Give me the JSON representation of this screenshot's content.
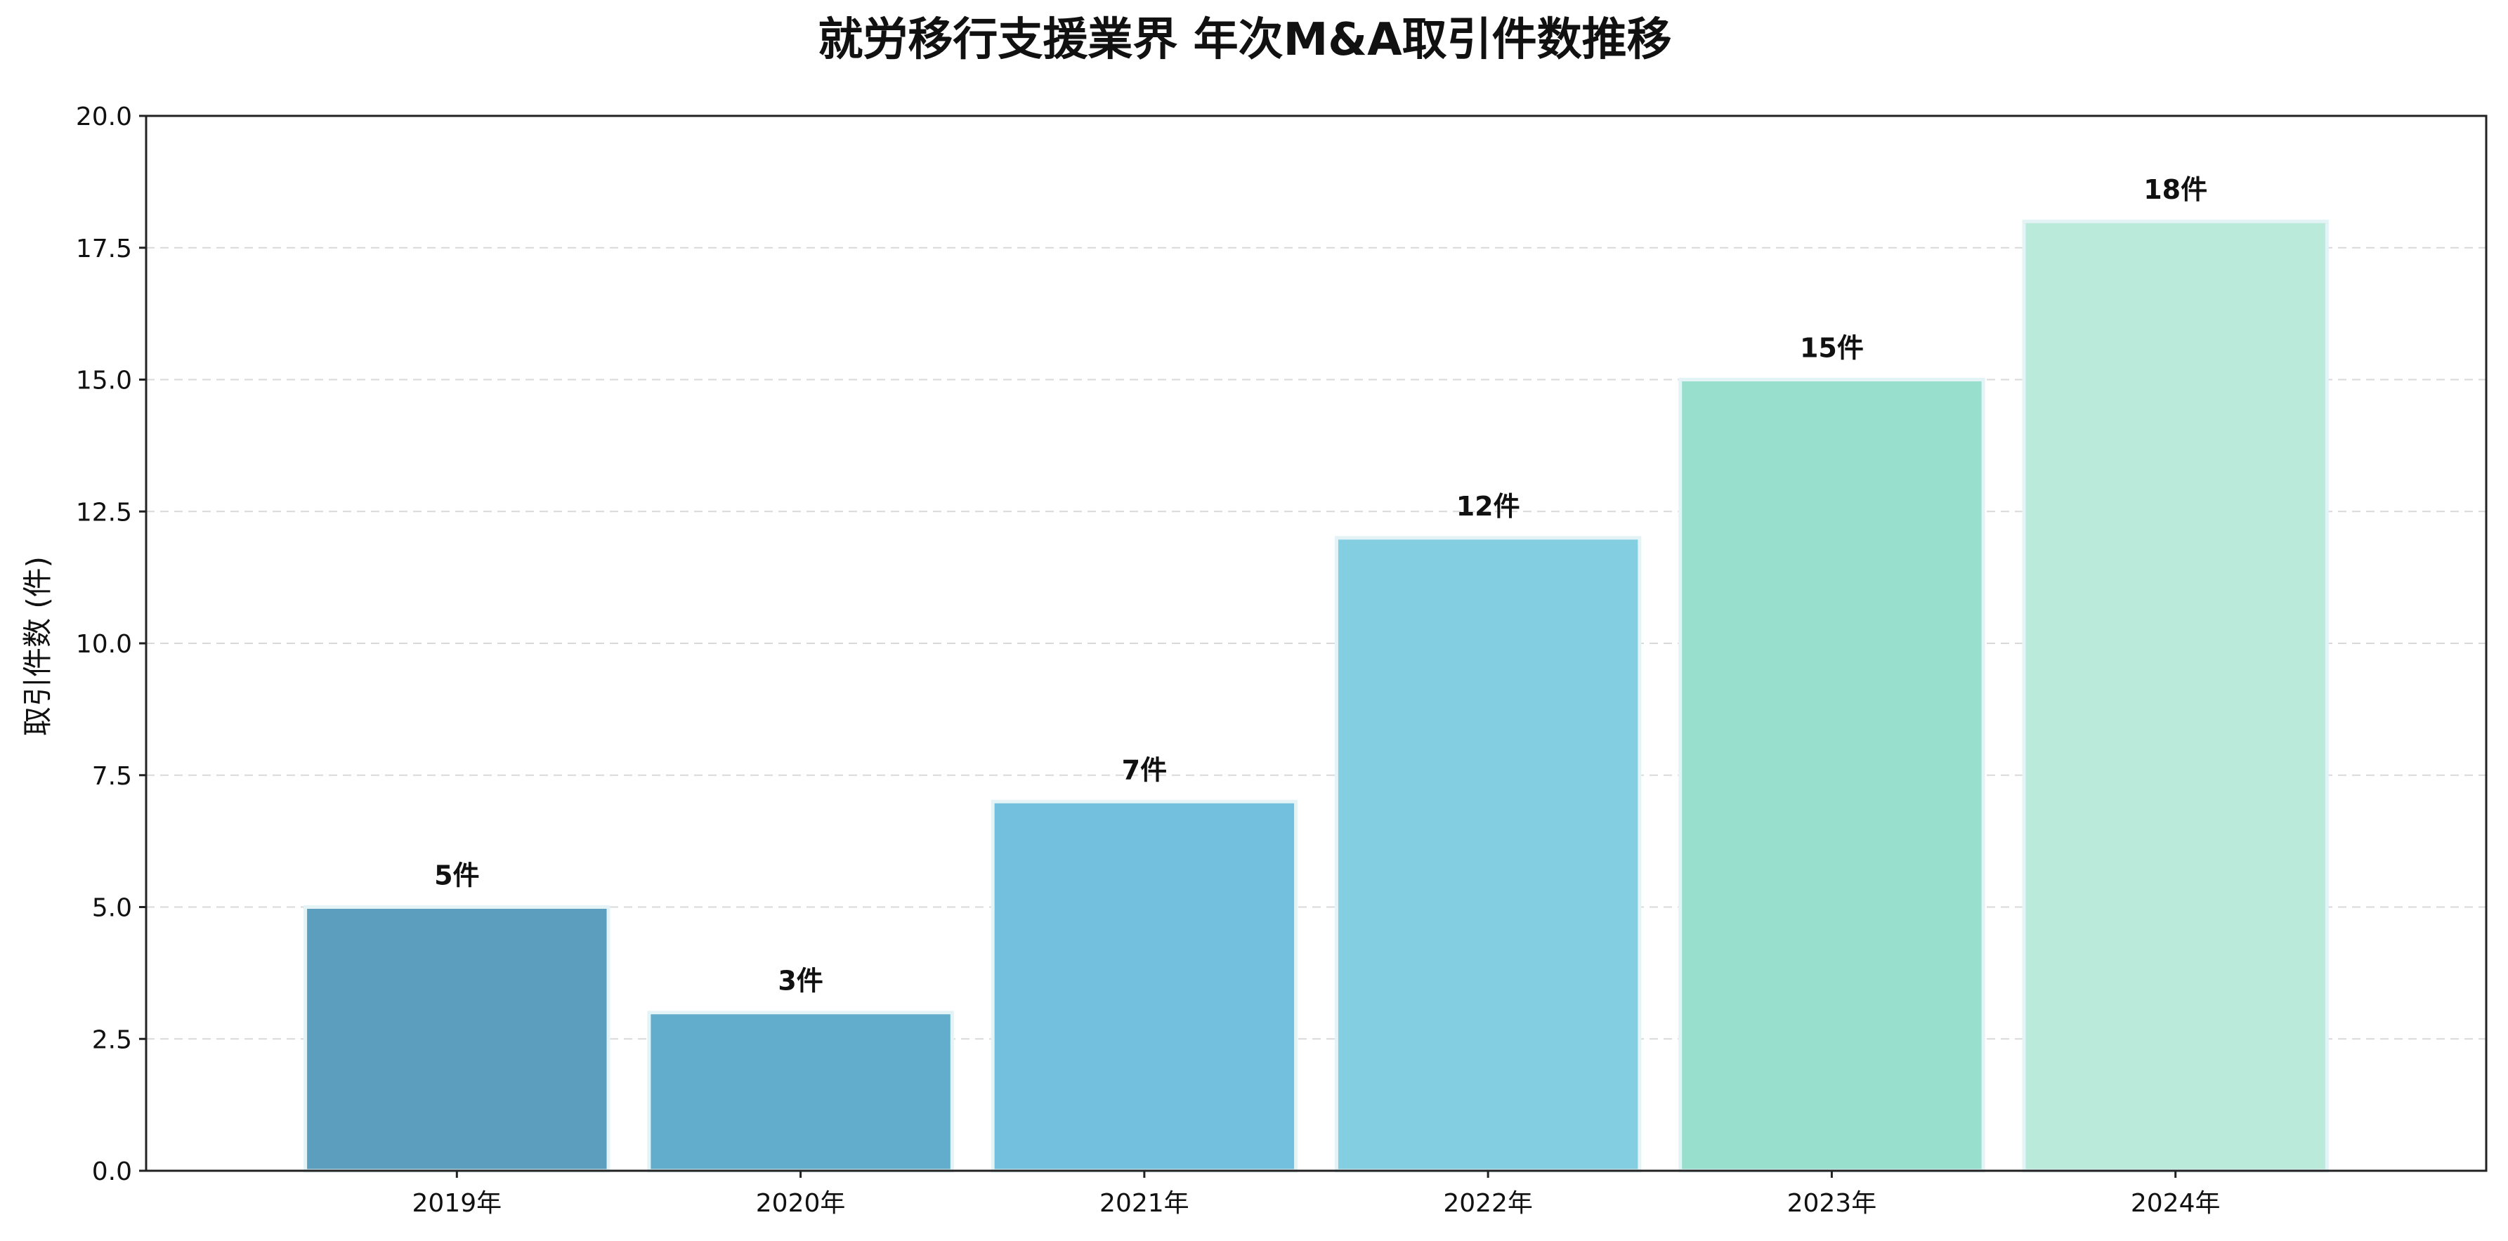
{
  "chart_data": {
    "type": "bar",
    "title": "就労移行支援業界 年次M&A取引件数推移",
    "xlabel": "",
    "ylabel": "取引件数 (件)",
    "categories": [
      "2019年",
      "2020年",
      "2021年",
      "2022年",
      "2023年",
      "2024年"
    ],
    "values": [
      5,
      3,
      7,
      12,
      15,
      18
    ],
    "data_labels": [
      "5件",
      "3件",
      "7件",
      "12件",
      "15件",
      "18件"
    ],
    "ylim": [
      0,
      20
    ],
    "yticks": [
      0,
      2.5,
      5,
      7.5,
      10,
      12.5,
      15,
      17.5,
      20
    ],
    "ytick_labels": [
      "0.0",
      "2.5",
      "5.0",
      "7.5",
      "10.0",
      "12.5",
      "15.0",
      "17.5",
      "20.0"
    ],
    "grid": "horizontal dashed",
    "bar_colors": [
      "#5b9ebd",
      "#62adcb",
      "#73c0de",
      "#84cee1",
      "#98dfcd",
      "#baeada"
    ],
    "bar_edge_color": "#e4f3f6"
  }
}
